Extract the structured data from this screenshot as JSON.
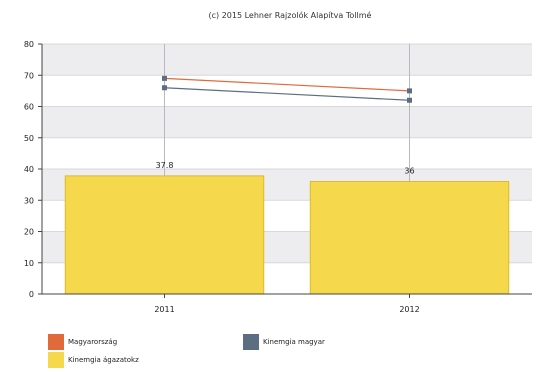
{
  "chart_data": {
    "type": "bar",
    "title": "(c) 2015 Lehner Rajzolók Alapítva Tollmé",
    "categories": [
      "2011",
      "2012"
    ],
    "ylim": [
      0,
      80
    ],
    "yticks": [
      0,
      10,
      20,
      30,
      40,
      50,
      60,
      70,
      80
    ],
    "grid": true,
    "legend_position": "bottom",
    "series": [
      {
        "name": "Kinemgia ágazatokz",
        "type": "bar",
        "values": [
          37.8,
          36
        ],
        "data_labels": [
          "37.8",
          "36"
        ],
        "color": "#f5d84b"
      },
      {
        "name": "Magyarország",
        "type": "line",
        "values": [
          69,
          65
        ],
        "color": "#e06a3a"
      },
      {
        "name": "Kinemgia magyar",
        "type": "line",
        "values": [
          66,
          62
        ],
        "color": "#5c6f82"
      }
    ],
    "band_color": "#ededf0"
  }
}
